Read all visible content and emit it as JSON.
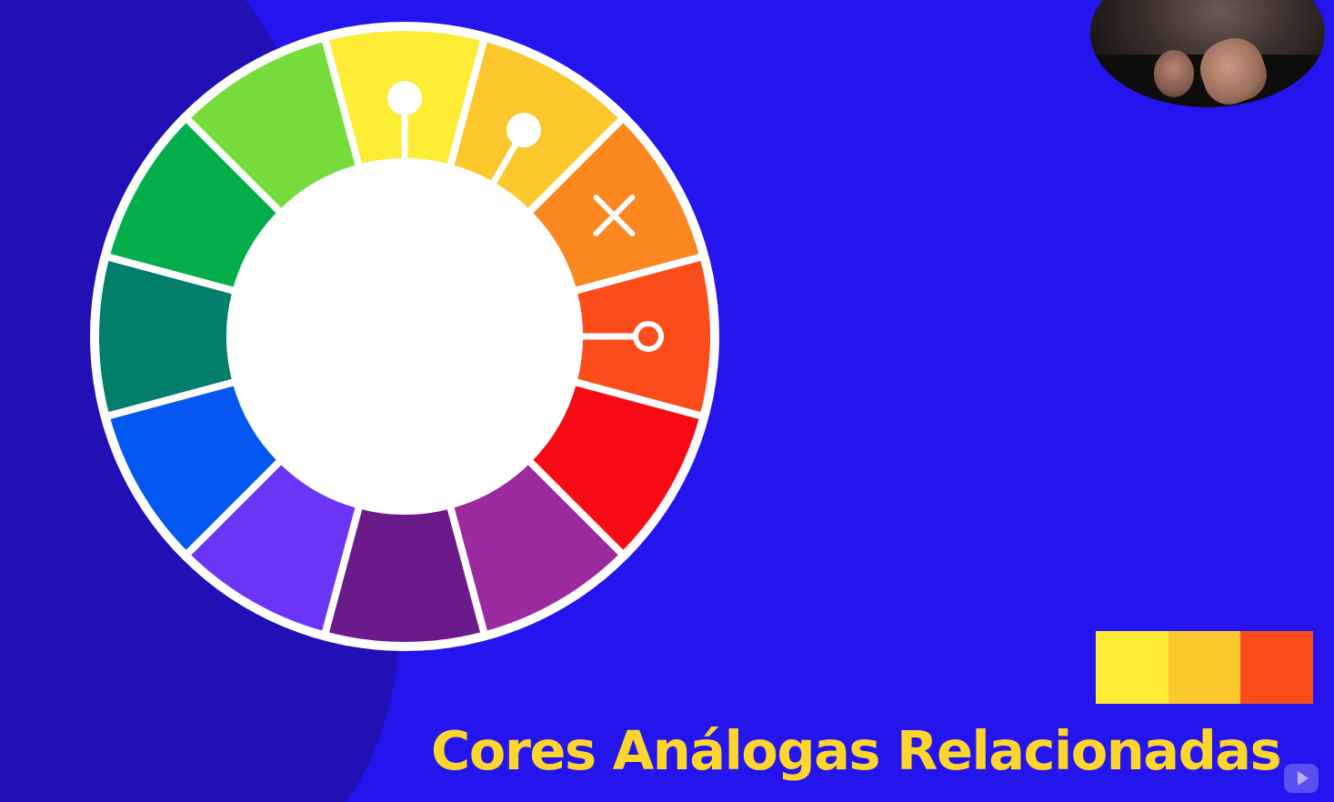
{
  "caption": "Cores Análogas Relacionadas",
  "colors": {
    "background": "#2415ee",
    "background_shape": "#2010b6",
    "ring_outline": "#ffffff",
    "caption": "#fcd62c"
  },
  "color_wheel": {
    "segments": [
      {
        "name": "yellow",
        "color": "#fcec34"
      },
      {
        "name": "yellow-orange",
        "color": "#fcc72c"
      },
      {
        "name": "orange",
        "color": "#fb8720"
      },
      {
        "name": "red-orange",
        "color": "#fb4d1b"
      },
      {
        "name": "red",
        "color": "#f80a14"
      },
      {
        "name": "red-violet",
        "color": "#9b2a9f"
      },
      {
        "name": "violet",
        "color": "#6b1a8a"
      },
      {
        "name": "blue-violet",
        "color": "#6a35f5"
      },
      {
        "name": "blue",
        "color": "#0457f0"
      },
      {
        "name": "blue-green",
        "color": "#027e6a"
      },
      {
        "name": "green",
        "color": "#03ae4a"
      },
      {
        "name": "yellow-green",
        "color": "#76dc3c"
      }
    ],
    "selected_segments": [
      "yellow",
      "yellow-orange",
      "red-orange"
    ],
    "excluded_segment": "orange",
    "excluded_icon": "close-icon"
  },
  "palette": [
    {
      "name": "yellow",
      "color": "#fcec34"
    },
    {
      "name": "yellow-orange",
      "color": "#fcc72c"
    },
    {
      "name": "red-orange",
      "color": "#fb4d1b"
    }
  ],
  "presenter_icon": "presenter-webcam",
  "overlay_icon": "play-icon"
}
